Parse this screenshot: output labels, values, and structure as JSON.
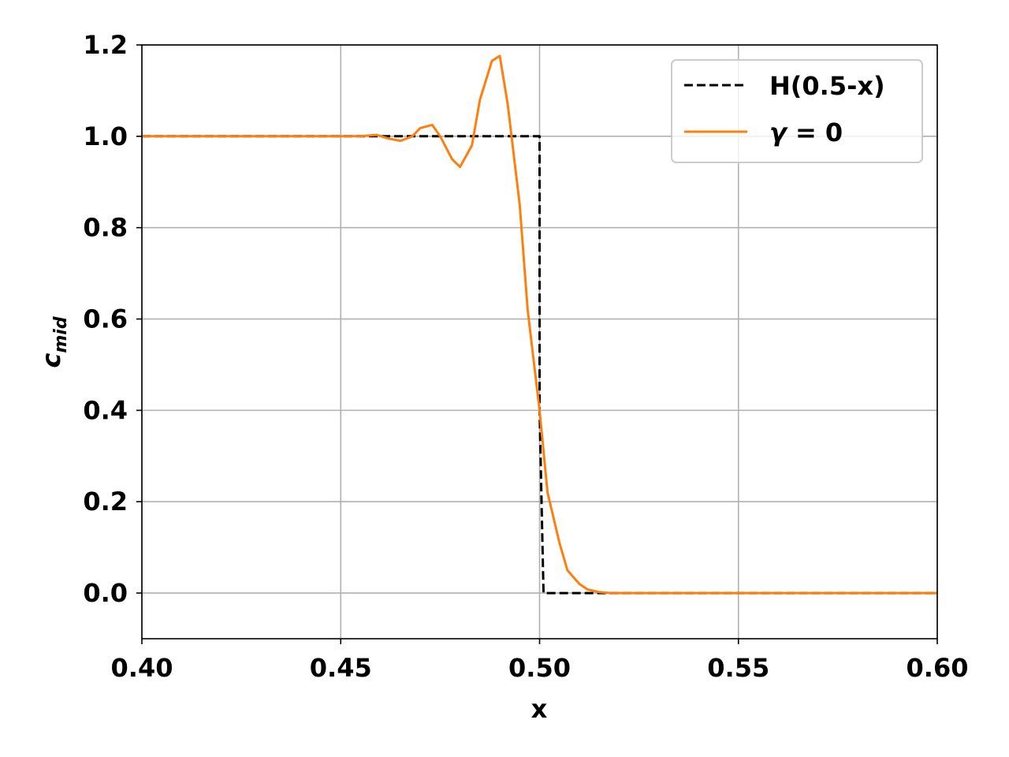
{
  "chart_data": {
    "type": "line",
    "xlabel": "x",
    "ylabel": {
      "base": "c",
      "sub": "mid"
    },
    "xlim": [
      0.4,
      0.6
    ],
    "ylim": [
      -0.1,
      1.2
    ],
    "xticks": [
      "0.40",
      "0.45",
      "0.50",
      "0.55",
      "0.60"
    ],
    "yticks": [
      "0.0",
      "0.2",
      "0.4",
      "0.6",
      "0.8",
      "1.0",
      "1.2"
    ],
    "grid": true,
    "legend_position": "top-right",
    "series": [
      {
        "name": "H(0.5-x)",
        "color": "#000000",
        "style": "dashed",
        "x": [
          0.4,
          0.5,
          0.5,
          0.501,
          0.6
        ],
        "y": [
          1.0,
          1.0,
          0.4,
          0.0,
          0.0
        ]
      },
      {
        "name_parts": [
          "γ",
          " = 0"
        ],
        "color": "#ff7f0e",
        "style": "solid",
        "x": [
          0.4,
          0.445,
          0.45,
          0.455,
          0.459,
          0.462,
          0.465,
          0.468,
          0.47,
          0.473,
          0.475,
          0.478,
          0.48,
          0.483,
          0.485,
          0.488,
          0.49,
          0.492,
          0.495,
          0.497,
          0.5,
          0.502,
          0.505,
          0.507,
          0.51,
          0.512,
          0.515,
          0.518,
          0.52,
          0.6
        ],
        "y": [
          1.0,
          1.0,
          1.0,
          1.0,
          1.003,
          0.995,
          0.99,
          1.0,
          1.018,
          1.025,
          1.0,
          0.95,
          0.933,
          0.98,
          1.08,
          1.165,
          1.176,
          1.07,
          0.85,
          0.62,
          0.4,
          0.22,
          0.11,
          0.05,
          0.02,
          0.008,
          0.002,
          0.0,
          0.0,
          0.0
        ]
      }
    ]
  }
}
